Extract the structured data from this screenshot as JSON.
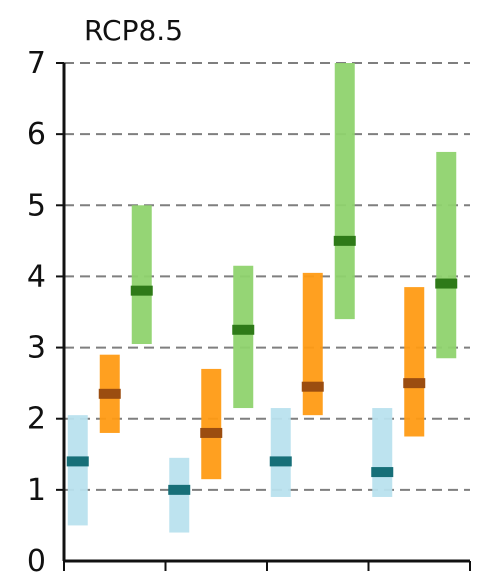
{
  "chart_data": {
    "type": "range-bar",
    "title": "RCP8.5",
    "xlabel": "",
    "ylabel": "",
    "ylim": [
      0,
      7
    ],
    "grid": true,
    "y_ticks": [
      "0",
      "1",
      "2",
      "3",
      "4",
      "5",
      "6",
      "7"
    ],
    "groups": [
      {
        "bars": [
          {
            "min": 0.5,
            "max": 2.05,
            "median": 1.4,
            "color": "#b9e2ee",
            "median_color": "#176f78"
          },
          {
            "min": 1.8,
            "max": 2.9,
            "median": 2.35,
            "color": "#ff9b14",
            "median_color": "#9b4d10"
          },
          {
            "min": 3.05,
            "max": 5.0,
            "median": 3.8,
            "color": "#8fd36e",
            "median_color": "#2e7a18"
          }
        ]
      },
      {
        "bars": [
          {
            "min": 0.4,
            "max": 1.45,
            "median": 1.0,
            "color": "#b9e2ee",
            "median_color": "#176f78"
          },
          {
            "min": 1.15,
            "max": 2.7,
            "median": 1.8,
            "color": "#ff9b14",
            "median_color": "#9b4d10"
          },
          {
            "min": 2.15,
            "max": 4.15,
            "median": 3.25,
            "color": "#8fd36e",
            "median_color": "#2e7a18"
          }
        ]
      },
      {
        "bars": [
          {
            "min": 0.9,
            "max": 2.15,
            "median": 1.4,
            "color": "#b9e2ee",
            "median_color": "#176f78"
          },
          {
            "min": 2.05,
            "max": 4.05,
            "median": 2.45,
            "color": "#ff9b14",
            "median_color": "#9b4d10"
          },
          {
            "min": 3.4,
            "max": 7.0,
            "median": 4.5,
            "color": "#8fd36e",
            "median_color": "#2e7a18"
          }
        ]
      },
      {
        "bars": [
          {
            "min": 0.9,
            "max": 2.15,
            "median": 1.25,
            "color": "#b9e2ee",
            "median_color": "#176f78"
          },
          {
            "min": 1.75,
            "max": 3.85,
            "median": 2.5,
            "color": "#ff9b14",
            "median_color": "#9b4d10"
          },
          {
            "min": 2.85,
            "max": 5.75,
            "median": 3.9,
            "color": "#8fd36e",
            "median_color": "#2e7a18"
          }
        ]
      }
    ],
    "colors": {
      "axis": "#111111",
      "grid": "#7f7f7f"
    }
  }
}
